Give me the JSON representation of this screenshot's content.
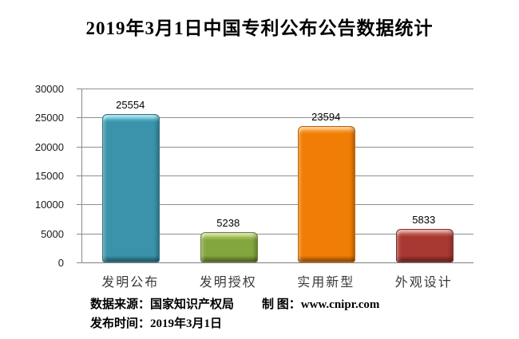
{
  "chart_data": {
    "type": "bar",
    "title": "2019年3月1日中国专利公布公告数据统计",
    "categories": [
      "发明公布",
      "发明授权",
      "实用新型",
      "外观设计"
    ],
    "values": [
      25554,
      5238,
      23594,
      5833
    ],
    "value_labels": [
      "25554",
      "5238",
      "23594",
      "5833"
    ],
    "bar_colors": [
      "#3a93aa",
      "#84a63f",
      "#f07d05",
      "#a83832"
    ],
    "bar_highlight_colors": [
      "#6cc8dd",
      "#b2cd68",
      "#fba339",
      "#cc6b60"
    ],
    "bar_shadow_colors": [
      "#2c7487",
      "#66822f",
      "#c26404",
      "#862b26"
    ],
    "xlabel": "",
    "ylabel": "",
    "ylim": [
      0,
      30000
    ],
    "yticks": [
      0,
      5000,
      10000,
      15000,
      20000,
      25000,
      30000
    ],
    "ytick_labels": [
      "0",
      "5000",
      "10000",
      "15000",
      "20000",
      "25000",
      "30000"
    ],
    "grid": true,
    "gridline_color": "#8f8f8f",
    "legend": "none"
  },
  "footer": {
    "source_label": "数据来源：国家知识产权局",
    "credit_label": "制 图：www.cnipr.com",
    "date_label": "发布时间：2019年3月1日"
  }
}
